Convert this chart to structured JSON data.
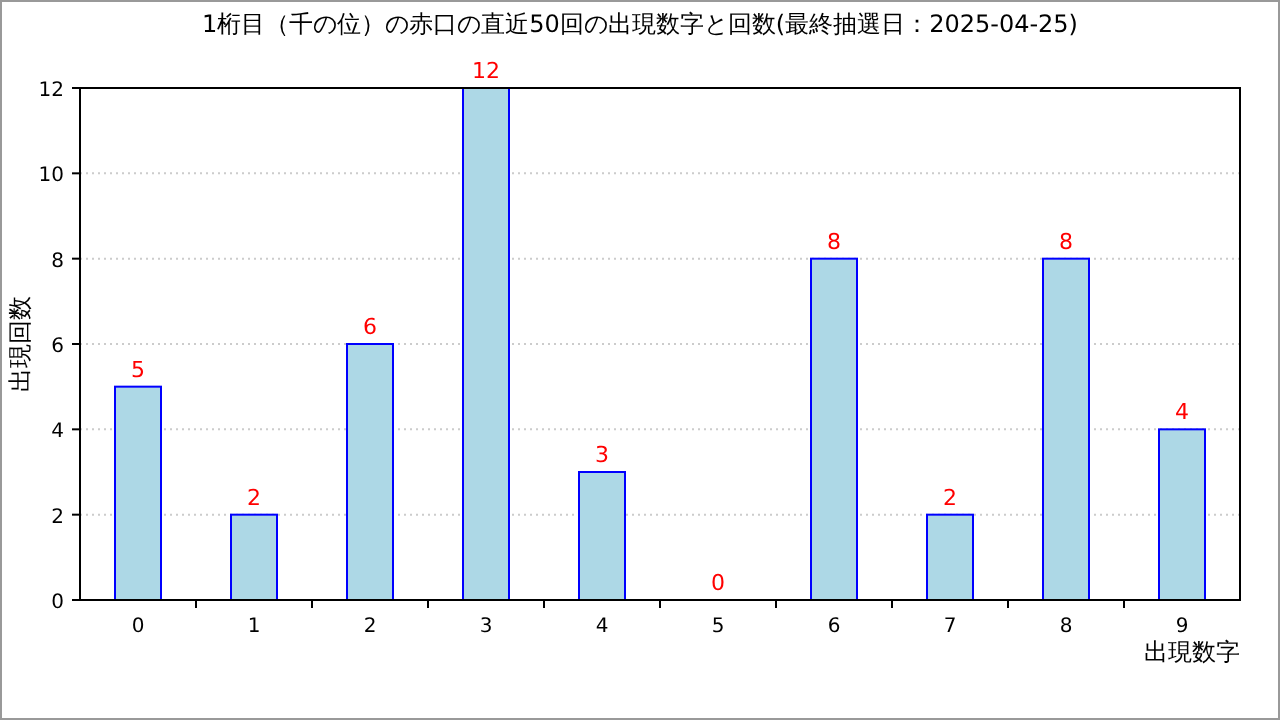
{
  "chart_data": {
    "type": "bar",
    "title": "1桁目（千の位）の赤口の直近50回の出現数字と回数(最終抽選日：2025-04-25)",
    "xlabel": "出現数字",
    "ylabel": "出現回数",
    "categories": [
      "0",
      "1",
      "2",
      "3",
      "4",
      "5",
      "6",
      "7",
      "8",
      "9"
    ],
    "values": [
      5,
      2,
      6,
      12,
      3,
      0,
      8,
      2,
      8,
      4
    ],
    "color": "#add8e6",
    "ylim": [
      0,
      12
    ],
    "yticks": [
      0,
      2,
      4,
      6,
      8,
      10,
      12
    ],
    "grid": "y",
    "data_labels": true
  }
}
